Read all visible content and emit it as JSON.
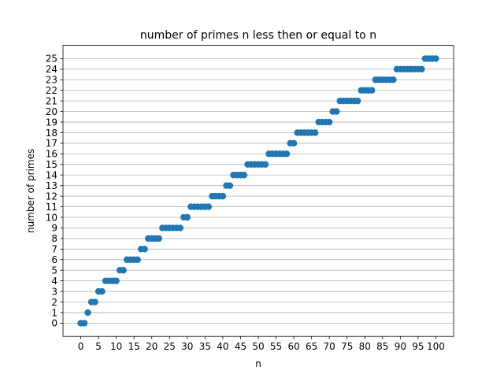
{
  "chart_data": {
    "type": "scatter",
    "title": "number of primes n less then or equal to n",
    "xlabel": "n",
    "ylabel": "number of primes",
    "xlim": [
      -5,
      105
    ],
    "ylim": [
      -1.25,
      26.25
    ],
    "x_ticks": [
      0,
      5,
      10,
      15,
      20,
      25,
      30,
      35,
      40,
      45,
      50,
      55,
      60,
      65,
      70,
      75,
      80,
      85,
      90,
      95,
      100
    ],
    "y_ticks": [
      0,
      1,
      2,
      3,
      4,
      5,
      6,
      7,
      8,
      9,
      10,
      11,
      12,
      13,
      14,
      15,
      16,
      17,
      18,
      19,
      20,
      21,
      22,
      23,
      24,
      25
    ],
    "grid": "horizontal",
    "legend": "none",
    "colors": {
      "marker": "#1f77b4",
      "grid": "#b0b0b0",
      "axes": "#000000"
    },
    "series": [
      {
        "x": [
          0,
          1,
          2,
          3,
          4,
          5,
          6,
          7,
          8,
          9,
          10,
          11,
          12,
          13,
          14,
          15,
          16,
          17,
          18,
          19,
          20,
          21,
          22,
          23,
          24,
          25,
          26,
          27,
          28,
          29,
          30,
          31,
          32,
          33,
          34,
          35,
          36,
          37,
          38,
          39,
          40,
          41,
          42,
          43,
          44,
          45,
          46,
          47,
          48,
          49,
          50,
          51,
          52,
          53,
          54,
          55,
          56,
          57,
          58,
          59,
          60,
          61,
          62,
          63,
          64,
          65,
          66,
          67,
          68,
          69,
          70,
          71,
          72,
          73,
          74,
          75,
          76,
          77,
          78,
          79,
          80,
          81,
          82,
          83,
          84,
          85,
          86,
          87,
          88,
          89,
          90,
          91,
          92,
          93,
          94,
          95,
          96,
          97,
          98,
          99,
          100
        ],
        "y": [
          0,
          0,
          1,
          2,
          2,
          3,
          3,
          4,
          4,
          4,
          4,
          5,
          5,
          6,
          6,
          6,
          6,
          7,
          7,
          8,
          8,
          8,
          8,
          9,
          9,
          9,
          9,
          9,
          9,
          10,
          10,
          11,
          11,
          11,
          11,
          11,
          11,
          12,
          12,
          12,
          12,
          13,
          13,
          14,
          14,
          14,
          14,
          15,
          15,
          15,
          15,
          15,
          15,
          16,
          16,
          16,
          16,
          16,
          16,
          17,
          17,
          18,
          18,
          18,
          18,
          18,
          18,
          19,
          19,
          19,
          19,
          20,
          20,
          21,
          21,
          21,
          21,
          21,
          21,
          22,
          22,
          22,
          22,
          23,
          23,
          23,
          23,
          23,
          23,
          24,
          24,
          24,
          24,
          24,
          24,
          24,
          24,
          25,
          25,
          25,
          25
        ]
      }
    ]
  }
}
